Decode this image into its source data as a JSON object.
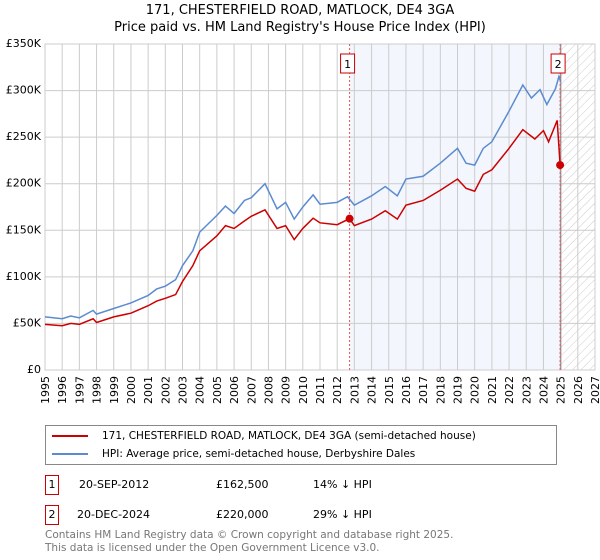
{
  "chart_data": {
    "type": "line",
    "title": "171, CHESTERFIELD ROAD, MATLOCK, DE4 3GA",
    "subtitle": "Price paid vs. HM Land Registry's House Price Index (HPI)",
    "xlim": [
      1995,
      2027
    ],
    "ylim": [
      0,
      350000
    ],
    "yticks": [
      {
        "v": 0,
        "label": "£0"
      },
      {
        "v": 50000,
        "label": "£50K"
      },
      {
        "v": 100000,
        "label": "£100K"
      },
      {
        "v": 150000,
        "label": "£150K"
      },
      {
        "v": 200000,
        "label": "£200K"
      },
      {
        "v": 250000,
        "label": "£250K"
      },
      {
        "v": 300000,
        "label": "£300K"
      },
      {
        "v": 350000,
        "label": "£350K"
      }
    ],
    "xticks": [
      "1995",
      "1996",
      "1997",
      "1998",
      "1999",
      "2000",
      "2001",
      "2002",
      "2003",
      "2004",
      "2005",
      "2006",
      "2007",
      "2008",
      "2009",
      "2010",
      "2011",
      "2012",
      "2013",
      "2014",
      "2015",
      "2016",
      "2017",
      "2018",
      "2019",
      "2020",
      "2021",
      "2022",
      "2023",
      "2024",
      "2025",
      "2026",
      "2027"
    ],
    "grid": true,
    "shaded_range": [
      2012.72,
      2025.0
    ],
    "hatched_range": [
      2025.0,
      2027
    ],
    "series": [
      {
        "name": "171, CHESTERFIELD ROAD, MATLOCK, DE4 3GA (semi-detached house)",
        "color": "#cc0000",
        "points": [
          [
            1995,
            49000
          ],
          [
            1996,
            47500
          ],
          [
            1996.5,
            50000
          ],
          [
            1997,
            49000
          ],
          [
            1997.8,
            55000
          ],
          [
            1998,
            51000
          ],
          [
            1999,
            57000
          ],
          [
            2000,
            61000
          ],
          [
            2001,
            69000
          ],
          [
            2001.5,
            74000
          ],
          [
            2002,
            77000
          ],
          [
            2002.6,
            81000
          ],
          [
            2003,
            95000
          ],
          [
            2003.6,
            112000
          ],
          [
            2004,
            128000
          ],
          [
            2005,
            144000
          ],
          [
            2005.5,
            155000
          ],
          [
            2006,
            152000
          ],
          [
            2006.6,
            160000
          ],
          [
            2007,
            165000
          ],
          [
            2007.8,
            172000
          ],
          [
            2008.5,
            152000
          ],
          [
            2009,
            155000
          ],
          [
            2009.5,
            140000
          ],
          [
            2010,
            152000
          ],
          [
            2010.6,
            163000
          ],
          [
            2011,
            158000
          ],
          [
            2012,
            156000
          ],
          [
            2012.72,
            162500
          ],
          [
            2013,
            155000
          ],
          [
            2014,
            162000
          ],
          [
            2014.8,
            171000
          ],
          [
            2015.5,
            162000
          ],
          [
            2016,
            177000
          ],
          [
            2017,
            182000
          ],
          [
            2018,
            193000
          ],
          [
            2019,
            205000
          ],
          [
            2019.5,
            195000
          ],
          [
            2020,
            192000
          ],
          [
            2020.5,
            210000
          ],
          [
            2021,
            215000
          ],
          [
            2022,
            238000
          ],
          [
            2022.8,
            258000
          ],
          [
            2023.5,
            248000
          ],
          [
            2024,
            257000
          ],
          [
            2024.3,
            245000
          ],
          [
            2024.8,
            268000
          ],
          [
            2024.97,
            220000
          ]
        ]
      },
      {
        "name": "HPI: Average price, semi-detached house, Derbyshire Dales",
        "color": "#5b8bd0",
        "points": [
          [
            1995,
            57000
          ],
          [
            1996,
            55000
          ],
          [
            1996.5,
            58000
          ],
          [
            1997,
            56000
          ],
          [
            1997.8,
            64000
          ],
          [
            1998,
            60000
          ],
          [
            1999,
            66000
          ],
          [
            2000,
            72000
          ],
          [
            2001,
            80000
          ],
          [
            2001.5,
            87000
          ],
          [
            2002,
            90000
          ],
          [
            2002.6,
            97000
          ],
          [
            2003,
            112000
          ],
          [
            2003.6,
            128000
          ],
          [
            2004,
            148000
          ],
          [
            2005,
            166000
          ],
          [
            2005.5,
            176000
          ],
          [
            2006,
            168000
          ],
          [
            2006.6,
            182000
          ],
          [
            2007,
            185000
          ],
          [
            2007.8,
            200000
          ],
          [
            2008.5,
            173000
          ],
          [
            2009,
            180000
          ],
          [
            2009.5,
            162000
          ],
          [
            2010,
            175000
          ],
          [
            2010.6,
            188000
          ],
          [
            2011,
            178000
          ],
          [
            2012,
            180000
          ],
          [
            2012.6,
            186000
          ],
          [
            2013,
            177000
          ],
          [
            2014,
            187000
          ],
          [
            2014.8,
            197000
          ],
          [
            2015.5,
            187000
          ],
          [
            2016,
            205000
          ],
          [
            2017,
            208000
          ],
          [
            2018,
            222000
          ],
          [
            2019,
            238000
          ],
          [
            2019.5,
            222000
          ],
          [
            2020,
            220000
          ],
          [
            2020.5,
            238000
          ],
          [
            2021,
            245000
          ],
          [
            2022,
            278000
          ],
          [
            2022.8,
            306000
          ],
          [
            2023.3,
            292000
          ],
          [
            2023.8,
            301000
          ],
          [
            2024.2,
            285000
          ],
          [
            2024.7,
            302000
          ],
          [
            2024.9,
            315000
          ],
          [
            2025.0,
            310000
          ]
        ]
      }
    ],
    "annotations": [
      {
        "label": "1",
        "x": 2012.72,
        "y": 162500
      },
      {
        "label": "2",
        "x": 2024.97,
        "y": 220000
      }
    ]
  },
  "sales": [
    {
      "num": "1",
      "date": "20-SEP-2012",
      "price": "£162,500",
      "diff": "14% ↓ HPI"
    },
    {
      "num": "2",
      "date": "20-DEC-2024",
      "price": "£220,000",
      "diff": "29% ↓ HPI"
    }
  ],
  "footer": {
    "line1": "Contains HM Land Registry data © Crown copyright and database right 2025.",
    "line2": "This data is licensed under the Open Government Licence v3.0."
  }
}
